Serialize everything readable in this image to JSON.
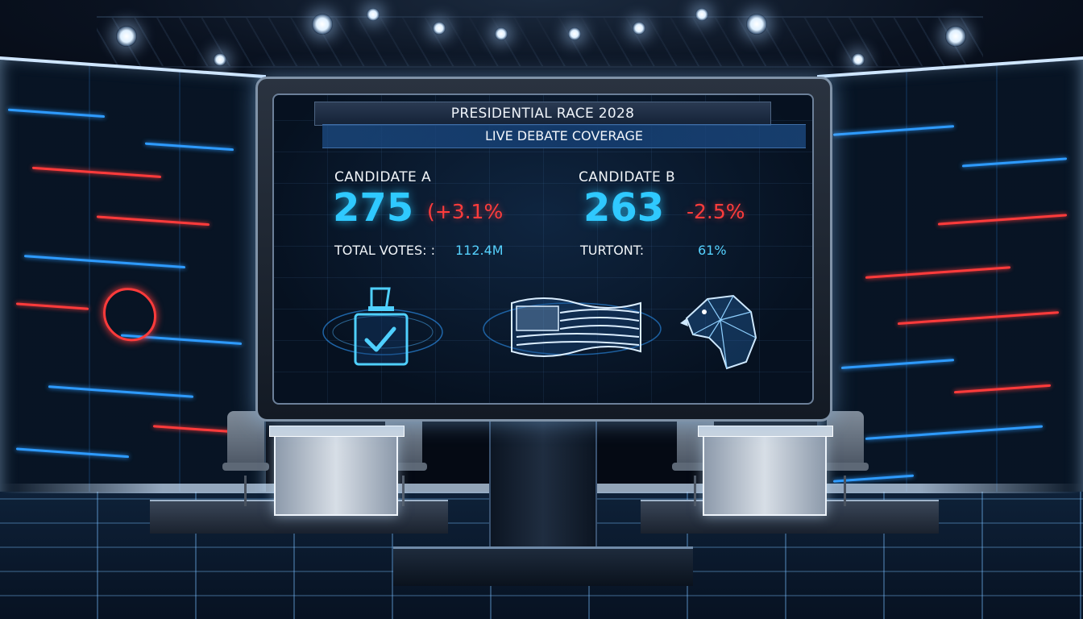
{
  "broadcast": {
    "title": "PRESIDENTIAL RACE 2028",
    "subtitle": "LIVE DEBATE COVERAGE"
  },
  "candidates": [
    {
      "label": "CANDIDATE A",
      "electoral_votes": "275",
      "change": "(+3.1%",
      "stat_label": "TOTAL VOTES: :",
      "stat_value": "112.4M"
    },
    {
      "label": "CANDIDATE B",
      "electoral_votes": "263",
      "change": "-2.5%",
      "stat_label": "TURTONT:",
      "stat_value": "61%"
    }
  ],
  "icons": [
    "ballot-box-icon",
    "american-flag-icon",
    "eagle-icon"
  ],
  "colors": {
    "accent_blue": "#2fc9ff",
    "accent_red": "#ff3c3c",
    "background": "#050a14"
  }
}
